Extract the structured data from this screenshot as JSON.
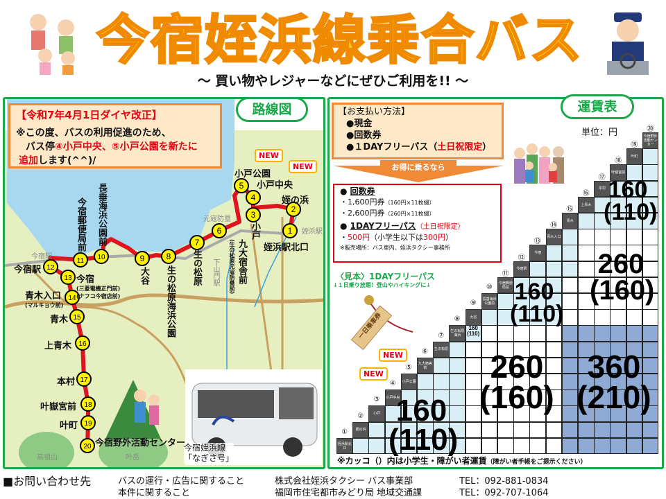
{
  "header": {
    "title": "今宿姪浜線乗合バス",
    "subtitle": "～ 買い物やレジャーなどにぜひご利用を!! ～"
  },
  "route_map": {
    "heading": "路線図",
    "notice": {
      "title": "【令和7年4月1日ダイヤ改正】",
      "line1": "※この度、バスの利用促進のため、",
      "line2_a": "バス停",
      "line2_b": "④小戸中央、⑤小戸公園を新たに",
      "line3_a": "追加",
      "line3_b": "します(^^)/"
    },
    "new_badge": "NEW",
    "stops": [
      {
        "no": "1",
        "name": "姪浜駅北口"
      },
      {
        "no": "2",
        "name": "姪の浜"
      },
      {
        "no": "3",
        "name": "小戸"
      },
      {
        "no": "4",
        "name": "小戸中央"
      },
      {
        "no": "5",
        "name": "小戸公園"
      },
      {
        "no": "6",
        "name": "九大宿舎前",
        "sub": "(生の松原元寇防塁前)"
      },
      {
        "no": "7",
        "name": "生の松原"
      },
      {
        "no": "8",
        "name": "生の松原海浜公園"
      },
      {
        "no": "9",
        "name": "大谷"
      },
      {
        "no": "10",
        "name": "長垂海浜公園前"
      },
      {
        "no": "11",
        "name": "今宿郵便局前"
      },
      {
        "no": "12",
        "name": "今宿駅"
      },
      {
        "no": "13",
        "name": "今宿",
        "sub": "(三菱電機正門前)",
        "sub2": "(ナフコ今宿店前)"
      },
      {
        "no": "14",
        "name": "青木入口",
        "sub": "(マルキョウ前)"
      },
      {
        "no": "15",
        "name": "青木"
      },
      {
        "no": "16",
        "name": "上青木"
      },
      {
        "no": "17",
        "name": "本村"
      },
      {
        "no": "18",
        "name": "叶嶽宮前"
      },
      {
        "no": "19",
        "name": "叶町"
      },
      {
        "no": "20",
        "name": "今宿野外活動センター"
      }
    ],
    "landmarks": {
      "genko": "元寇防塁",
      "meinohama_sta": "姪浜駅",
      "imajuku_sta": "今宿駅",
      "shimoyamato_sta": "下山門駅",
      "takasuyama": "高祖山",
      "kanodake": "叶岳"
    },
    "bus_caption_1": "今宿姪浜線",
    "bus_caption_2": "「なぎさ号」"
  },
  "fares": {
    "heading": "運賃表",
    "unit": "単位：円",
    "payment": {
      "title": "【お支払い方法】",
      "items": [
        "●現金",
        "●回数券"
      ],
      "dayfree_a": "●１DAYフリーパス（",
      "dayfree_b": "土日祝限定",
      "dayfree_c": "）"
    },
    "arrow_label": "お得に乗るなら",
    "coupon": {
      "title": "回数券",
      "item1_a": "・1,600円券",
      "item1_b": "（160円×11枚綴）",
      "item2_a": "・2,600円券",
      "item2_b": "（260円×11枚綴）"
    },
    "dayfree": {
      "title": "1DAYフリーパス",
      "limit": "（土日祝限定）",
      "price": "500円",
      "price_note_a": "（小学生以下は",
      "price_note_b": "300円",
      "price_note_c": "）",
      "sales": "※販売場所：バス車内、姪浜タクシー事務所"
    },
    "sample": {
      "title": "〈見本〉1DAYフリーパス",
      "subtitle": "↓１日乗り放題！登山やハイキングに↓",
      "tag_text": "一日乗車券"
    },
    "table_headers": [
      "姪浜駅北口",
      "姪の浜",
      "小戸",
      "小戸中央",
      "小戸公園",
      "九大宿舎前",
      "生の松原",
      "生の松原海浜",
      "大谷",
      "長垂海浜公園前",
      "今宿郵便局前",
      "今宿駅",
      "今宿",
      "青木入口",
      "青木",
      "上青木",
      "本村",
      "叶嶽宮前",
      "叶町",
      "今宿野外活動センター"
    ],
    "circled_numbers": [
      "①",
      "②",
      "③",
      "④",
      "⑤",
      "⑥",
      "⑦",
      "⑧",
      "⑨",
      "⑩",
      "⑪",
      "⑫",
      "⑬",
      "⑭",
      "⑮",
      "⑯",
      "⑰",
      "⑱",
      "⑲",
      "⑳"
    ],
    "bands": [
      {
        "adult": "160",
        "child": "(110)",
        "color": "#d9eef5"
      },
      {
        "adult": "260",
        "child": "(160)",
        "color": "#ffffff"
      },
      {
        "adult": "360",
        "child": "(210)",
        "color": "#8eaad5"
      }
    ],
    "note_a": "※カッコ（）内は小学生・障がい者運賃",
    "note_b": "（障がい者手帳をご提示ください）"
  },
  "contact": {
    "label": "■お問い合わせ先",
    "rows": [
      {
        "topic": "バスの運行・広告に関すること",
        "org": "株式会社姪浜タクシー バス事業部",
        "tel": "TEL：092-881-0834"
      },
      {
        "topic": "本件に関すること",
        "org": "福岡市住宅都市みどり局 地域交通課",
        "tel": "TEL：092-707-1064"
      }
    ]
  },
  "colors": {
    "frame": "#1aa84a",
    "route": "#e0141e",
    "stop": "#fff200",
    "accent": "#ef8a37",
    "alert": "#e60012"
  }
}
